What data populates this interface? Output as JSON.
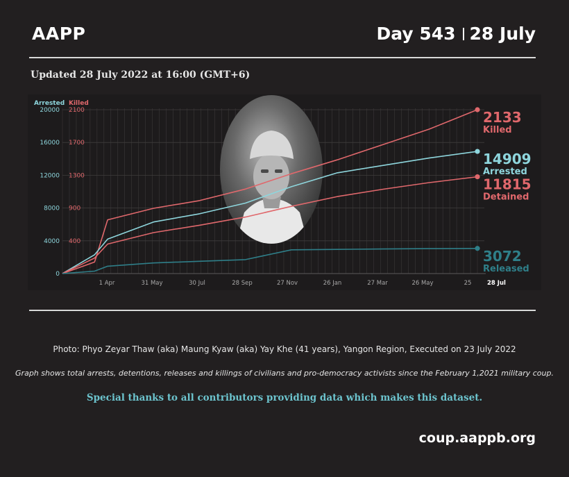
{
  "header": {
    "brand": "AAPP",
    "day_label": "Day 543",
    "date_label": "28 July"
  },
  "updated": "Updated 28 July 2022 at 16:00 (GMT+6)",
  "chart_data": {
    "type": "line",
    "axes": {
      "left": {
        "label": "Arrested",
        "ticks": [
          0,
          4000,
          8000,
          12000,
          16000,
          20000
        ],
        "ylim": [
          0,
          20000
        ],
        "color": "#8ed6dd"
      },
      "right_inner": {
        "label": "Killed",
        "ticks": [
          400,
          900,
          1300,
          1700,
          2100
        ],
        "ylim": [
          0,
          2133
        ],
        "color": "#e0686c"
      }
    },
    "x_ticks": [
      "1 Apr",
      "31 May",
      "30 Jul",
      "28 Sep",
      "27 Nov",
      "26 Jan",
      "27 Mar",
      "26 May",
      "25",
      "28 Jul"
    ],
    "x": [
      "2021-02-01",
      "2021-03-15",
      "2021-04-01",
      "2021-05-31",
      "2021-07-30",
      "2021-09-28",
      "2021-11-27",
      "2022-01-26",
      "2022-03-27",
      "2022-05-26",
      "2022-07-28"
    ],
    "series": [
      {
        "name": "Killed",
        "total": "2133",
        "color": "#e0686c",
        "axis": "killed",
        "values": [
          0,
          150,
          700,
          850,
          950,
          1100,
          1300,
          1480,
          1680,
          1880,
          2133
        ]
      },
      {
        "name": "Arrested",
        "total": "14909",
        "color": "#8ed6dd",
        "axis": "arrested",
        "values": [
          0,
          2300,
          4200,
          6300,
          7300,
          8600,
          10600,
          12300,
          13200,
          14100,
          14909
        ]
      },
      {
        "name": "Detained",
        "total": "11815",
        "color": "#e0686c",
        "axis": "arrested",
        "values": [
          0,
          1900,
          3600,
          5000,
          5900,
          6900,
          8200,
          9400,
          10300,
          11100,
          11815
        ]
      },
      {
        "name": "Released",
        "total": "3072",
        "color": "#2f7f89",
        "axis": "arrested",
        "values": [
          0,
          300,
          900,
          1300,
          1500,
          1700,
          2900,
          2950,
          3000,
          3040,
          3072
        ]
      }
    ],
    "grid": true,
    "legend_placement": "right"
  },
  "footer": {
    "photo_credit": "Photo: Phyo Zeyar Thaw (aka) Maung Kyaw (aka) Yay Khe (41 years), Yangon Region, Executed on 23 July 2022",
    "graph_note": "Graph shows total arrests, detentions, releases and killings of civilians and pro-democracy activists since the February 1,2021 military coup.",
    "thanks": "Special thanks to all contributors providing data which makes this dataset.",
    "url": "coup.aappb.org"
  }
}
